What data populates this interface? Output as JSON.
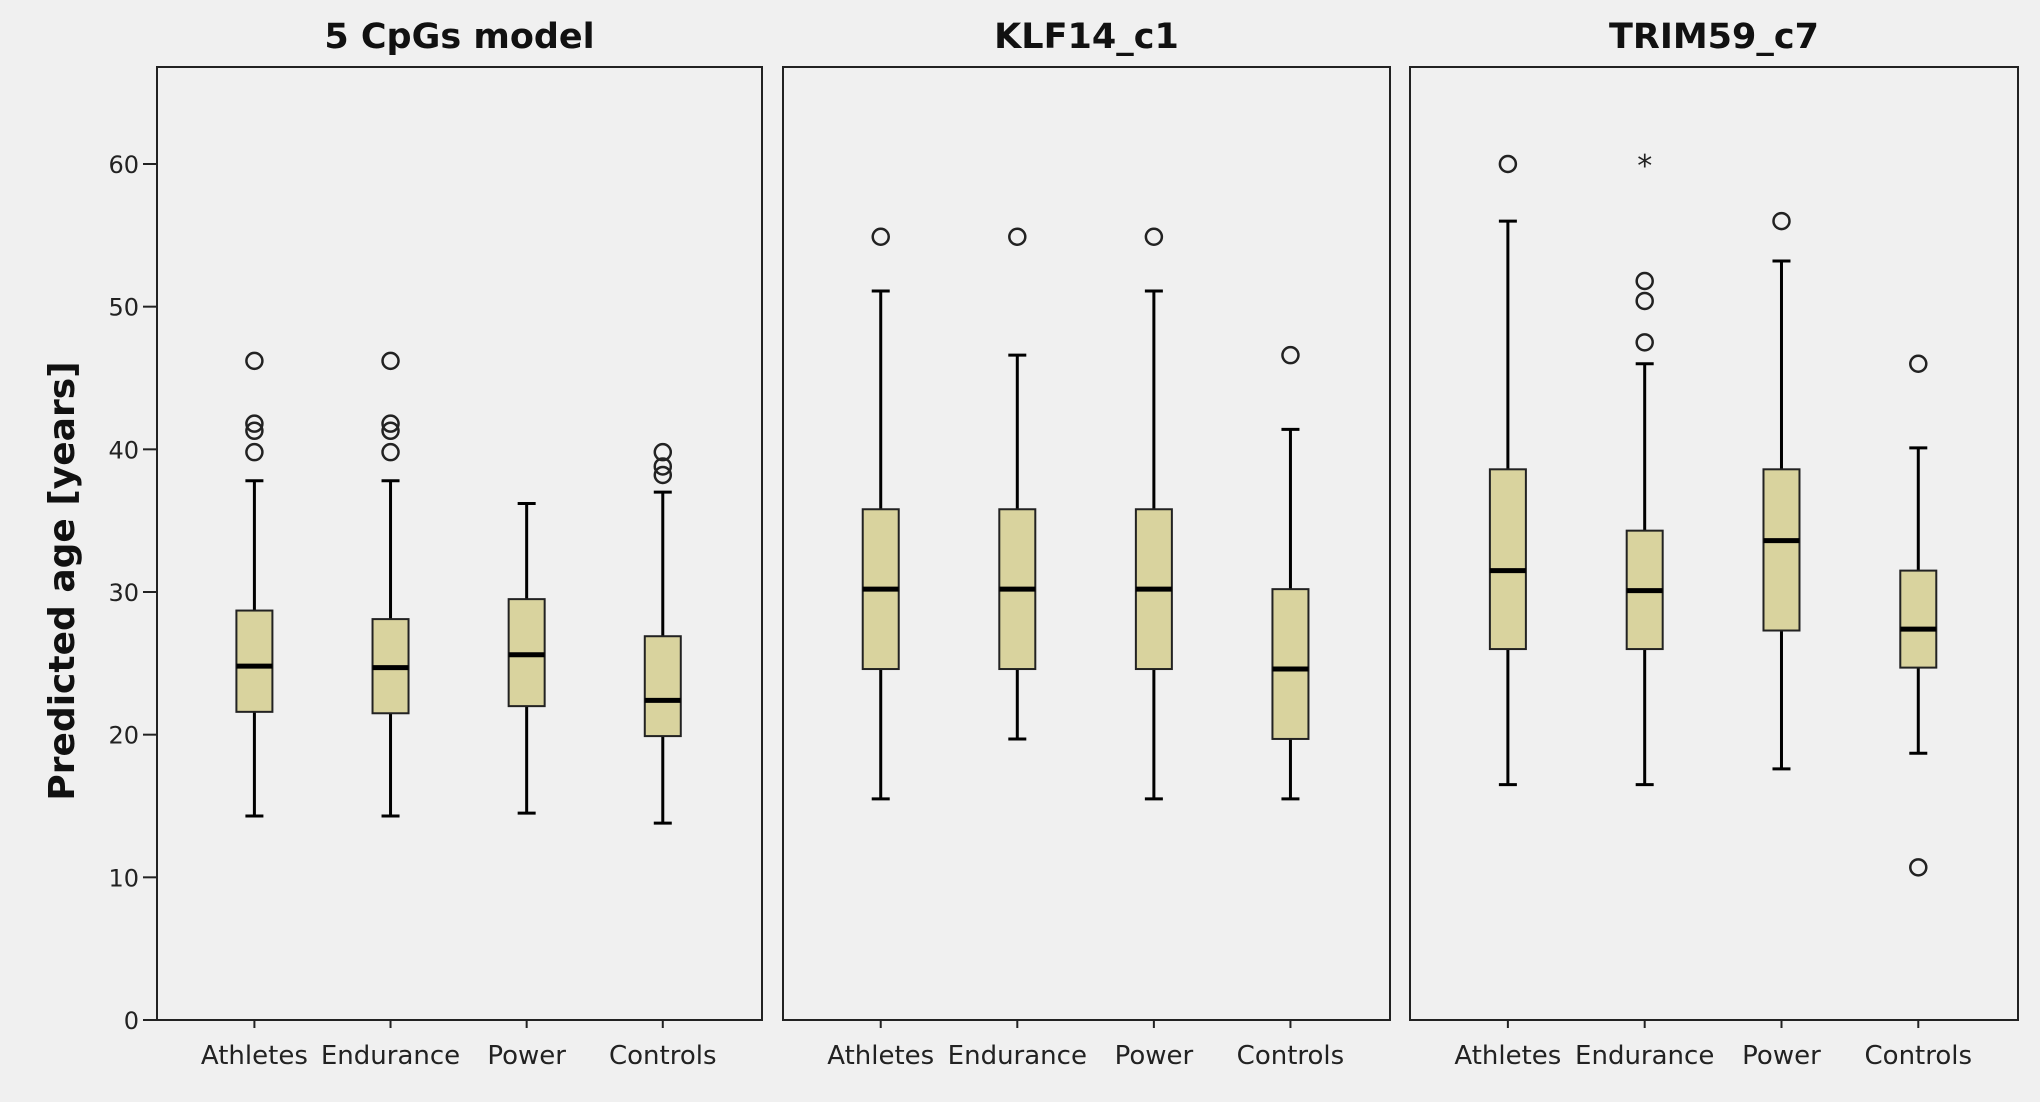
{
  "chart_data": {
    "type": "boxplot",
    "ylabel": "Predicted age [years]",
    "ylim": [
      0,
      66
    ],
    "yticks": [
      0,
      10,
      20,
      30,
      40,
      50,
      60
    ],
    "grid": false,
    "box_color": "#d9d39e",
    "categories": [
      "Athletes",
      "Endurance",
      "Power",
      "Controls"
    ],
    "panels": [
      {
        "title": "5 CpGs model",
        "boxes": [
          {
            "category": "Athletes",
            "whisker_low": 14.3,
            "q1": 21.6,
            "median": 24.8,
            "q3": 28.7,
            "whisker_high": 37.8,
            "outliers": [
              39.8,
              41.3,
              41.8,
              46.2
            ],
            "extremes": []
          },
          {
            "category": "Endurance",
            "whisker_low": 14.3,
            "q1": 21.5,
            "median": 24.7,
            "q3": 28.1,
            "whisker_high": 37.8,
            "outliers": [
              39.8,
              41.3,
              41.8,
              46.2
            ],
            "extremes": []
          },
          {
            "category": "Power",
            "whisker_low": 14.5,
            "q1": 22.0,
            "median": 25.6,
            "q3": 29.5,
            "whisker_high": 36.2,
            "outliers": [],
            "extremes": []
          },
          {
            "category": "Controls",
            "whisker_low": 13.8,
            "q1": 19.9,
            "median": 22.4,
            "q3": 26.9,
            "whisker_high": 37.0,
            "outliers": [
              38.2,
              38.8,
              39.8
            ],
            "extremes": []
          }
        ]
      },
      {
        "title": "KLF14_c1",
        "boxes": [
          {
            "category": "Athletes",
            "whisker_low": 15.5,
            "q1": 24.6,
            "median": 30.2,
            "q3": 35.8,
            "whisker_high": 51.1,
            "outliers": [
              54.9
            ],
            "extremes": []
          },
          {
            "category": "Endurance",
            "whisker_low": 19.7,
            "q1": 24.6,
            "median": 30.2,
            "q3": 35.8,
            "whisker_high": 46.6,
            "outliers": [
              54.9
            ],
            "extremes": []
          },
          {
            "category": "Power",
            "whisker_low": 15.5,
            "q1": 24.6,
            "median": 30.2,
            "q3": 35.8,
            "whisker_high": 51.1,
            "outliers": [
              54.9
            ],
            "extremes": []
          },
          {
            "category": "Controls",
            "whisker_low": 15.5,
            "q1": 19.7,
            "median": 24.6,
            "q3": 30.2,
            "whisker_high": 41.4,
            "outliers": [
              46.6
            ],
            "extremes": []
          }
        ]
      },
      {
        "title": "TRIM59_c7",
        "boxes": [
          {
            "category": "Athletes",
            "whisker_low": 16.5,
            "q1": 26.0,
            "median": 31.5,
            "q3": 38.6,
            "whisker_high": 56.0,
            "outliers": [
              60.0
            ],
            "extremes": []
          },
          {
            "category": "Endurance",
            "whisker_low": 16.5,
            "q1": 26.0,
            "median": 30.1,
            "q3": 34.3,
            "whisker_high": 46.0,
            "outliers": [
              47.5,
              50.4,
              51.8
            ],
            "extremes": [
              60.0
            ]
          },
          {
            "category": "Power",
            "whisker_low": 17.6,
            "q1": 27.3,
            "median": 33.6,
            "q3": 38.6,
            "whisker_high": 53.2,
            "outliers": [
              56.0
            ],
            "extremes": []
          },
          {
            "category": "Controls",
            "whisker_low": 18.7,
            "q1": 24.7,
            "median": 27.4,
            "q3": 31.5,
            "whisker_high": 40.1,
            "outliers": [
              10.7,
              46.0
            ],
            "extremes": []
          }
        ]
      }
    ]
  }
}
